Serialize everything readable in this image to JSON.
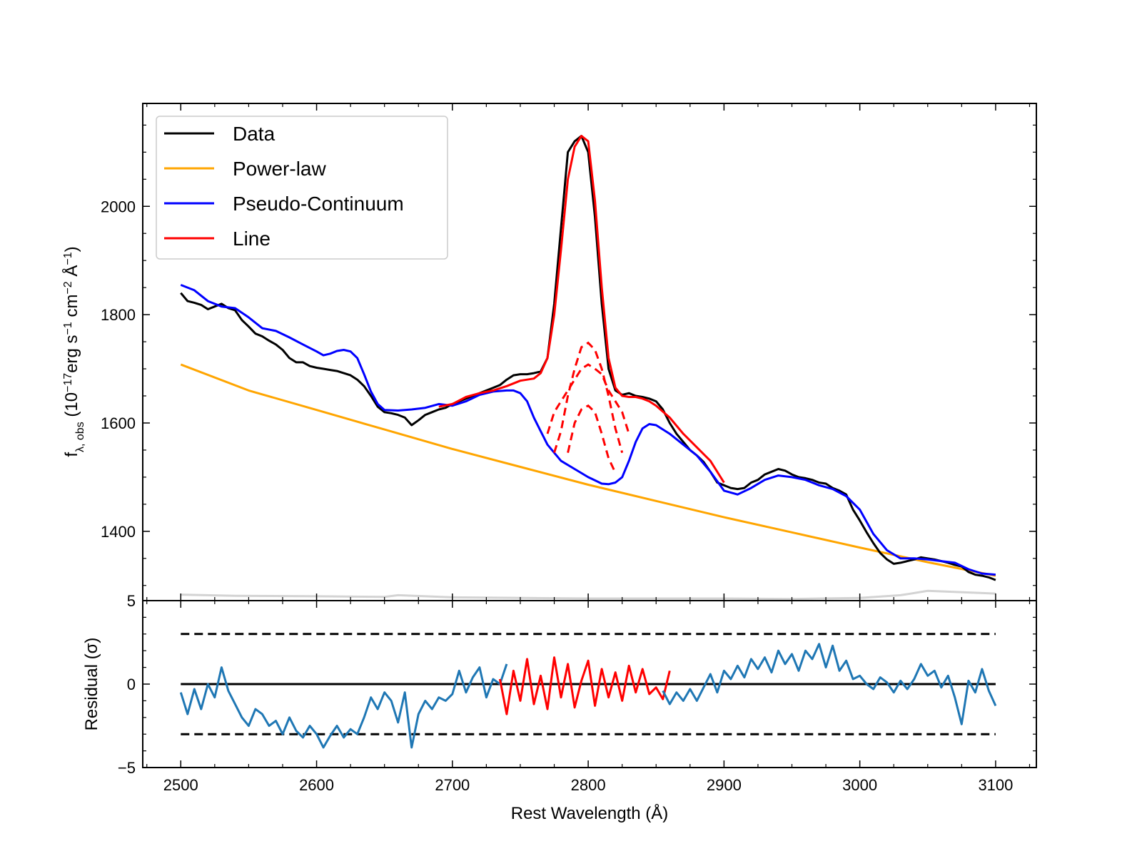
{
  "chart_data": [
    {
      "panel": "top",
      "type": "line",
      "ylabel_parts": {
        "f": "f",
        "sub": "λ, obs",
        "open": " (10",
        "exp1": "−17",
        "erg": "erg s",
        "exp2": "−1",
        "cm": " cm",
        "exp3": "−2",
        "ang": " Å",
        "exp4": "−1",
        "close": ")"
      },
      "xlim": [
        2472,
        3130
      ],
      "ylim": [
        1272,
        2190
      ],
      "yticks": [
        1400,
        1600,
        1800,
        2000
      ],
      "legend_position": "upper-left",
      "series": [
        {
          "name": "Data",
          "color": "#000000",
          "x": [
            2500,
            2505,
            2510,
            2515,
            2520,
            2525,
            2530,
            2535,
            2540,
            2545,
            2550,
            2555,
            2560,
            2565,
            2570,
            2575,
            2580,
            2585,
            2590,
            2595,
            2600,
            2605,
            2610,
            2615,
            2620,
            2625,
            2630,
            2635,
            2640,
            2645,
            2650,
            2655,
            2660,
            2665,
            2670,
            2675,
            2680,
            2685,
            2690,
            2695,
            2700,
            2705,
            2710,
            2715,
            2720,
            2725,
            2730,
            2735,
            2740,
            2745,
            2750,
            2755,
            2760,
            2765,
            2770,
            2775,
            2780,
            2785,
            2790,
            2795,
            2800,
            2805,
            2810,
            2815,
            2820,
            2825,
            2830,
            2835,
            2840,
            2845,
            2850,
            2855,
            2860,
            2865,
            2870,
            2875,
            2880,
            2885,
            2890,
            2895,
            2900,
            2905,
            2910,
            2915,
            2920,
            2925,
            2930,
            2935,
            2940,
            2945,
            2950,
            2955,
            2960,
            2965,
            2970,
            2975,
            2980,
            2985,
            2990,
            2995,
            3000,
            3005,
            3010,
            3015,
            3020,
            3025,
            3030,
            3035,
            3040,
            3045,
            3050,
            3055,
            3060,
            3065,
            3070,
            3075,
            3080,
            3085,
            3090,
            3095,
            3100
          ],
          "y": [
            1840,
            1825,
            1822,
            1818,
            1810,
            1815,
            1820,
            1812,
            1808,
            1790,
            1778,
            1765,
            1760,
            1752,
            1745,
            1735,
            1720,
            1712,
            1712,
            1705,
            1702,
            1700,
            1698,
            1696,
            1692,
            1688,
            1680,
            1668,
            1650,
            1630,
            1620,
            1618,
            1615,
            1610,
            1596,
            1605,
            1615,
            1620,
            1625,
            1628,
            1635,
            1640,
            1645,
            1650,
            1655,
            1660,
            1665,
            1670,
            1680,
            1688,
            1690,
            1690,
            1692,
            1695,
            1720,
            1820,
            1960,
            2100,
            2120,
            2130,
            2100,
            1980,
            1820,
            1700,
            1660,
            1652,
            1655,
            1650,
            1648,
            1645,
            1640,
            1625,
            1600,
            1580,
            1565,
            1550,
            1540,
            1528,
            1510,
            1490,
            1485,
            1480,
            1478,
            1480,
            1490,
            1495,
            1505,
            1510,
            1515,
            1512,
            1505,
            1500,
            1498,
            1495,
            1490,
            1488,
            1480,
            1475,
            1468,
            1440,
            1420,
            1398,
            1378,
            1360,
            1348,
            1340,
            1342,
            1345,
            1348,
            1352,
            1350,
            1348,
            1345,
            1342,
            1338,
            1335,
            1325,
            1320,
            1318,
            1315,
            1310
          ]
        },
        {
          "name": "Power-law",
          "color": "#FFA500",
          "x": [
            2500,
            2550,
            2600,
            2650,
            2700,
            2750,
            2800,
            2850,
            2900,
            2950,
            3000,
            3050,
            3100
          ],
          "y": [
            1708,
            1660,
            1624,
            1588,
            1552,
            1519,
            1486,
            1456,
            1426,
            1398,
            1370,
            1343,
            1318
          ]
        },
        {
          "name": "Pseudo-Continuum",
          "color": "#0000FF",
          "x": [
            2500,
            2510,
            2520,
            2530,
            2540,
            2550,
            2560,
            2570,
            2580,
            2590,
            2600,
            2605,
            2610,
            2615,
            2620,
            2625,
            2630,
            2635,
            2640,
            2645,
            2650,
            2660,
            2670,
            2680,
            2690,
            2700,
            2710,
            2720,
            2730,
            2740,
            2745,
            2750,
            2755,
            2760,
            2765,
            2770,
            2780,
            2790,
            2800,
            2805,
            2810,
            2815,
            2820,
            2825,
            2830,
            2835,
            2840,
            2845,
            2850,
            2860,
            2870,
            2880,
            2890,
            2900,
            2910,
            2920,
            2930,
            2940,
            2950,
            2960,
            2970,
            2980,
            2990,
            3000,
            3010,
            3020,
            3030,
            3040,
            3050,
            3060,
            3070,
            3080,
            3090,
            3100
          ],
          "y": [
            1855,
            1845,
            1825,
            1815,
            1812,
            1795,
            1775,
            1770,
            1758,
            1745,
            1732,
            1725,
            1728,
            1733,
            1735,
            1732,
            1720,
            1690,
            1658,
            1635,
            1624,
            1623,
            1625,
            1628,
            1635,
            1632,
            1640,
            1652,
            1658,
            1660,
            1660,
            1655,
            1640,
            1610,
            1585,
            1560,
            1530,
            1515,
            1500,
            1494,
            1488,
            1487,
            1490,
            1500,
            1530,
            1565,
            1590,
            1598,
            1596,
            1580,
            1560,
            1540,
            1510,
            1475,
            1468,
            1480,
            1495,
            1503,
            1500,
            1495,
            1485,
            1478,
            1465,
            1440,
            1395,
            1365,
            1350,
            1350,
            1348,
            1345,
            1342,
            1330,
            1322,
            1320
          ]
        },
        {
          "name": "Line",
          "color": "#FF0000",
          "x": [
            2690,
            2700,
            2710,
            2720,
            2730,
            2740,
            2750,
            2760,
            2765,
            2770,
            2775,
            2780,
            2785,
            2790,
            2795,
            2800,
            2805,
            2810,
            2815,
            2820,
            2825,
            2830,
            2835,
            2840,
            2845,
            2850,
            2860,
            2870,
            2880,
            2890,
            2900
          ],
          "y": [
            1630,
            1635,
            1648,
            1655,
            1660,
            1668,
            1678,
            1682,
            1692,
            1720,
            1800,
            1920,
            2050,
            2110,
            2130,
            2120,
            2010,
            1850,
            1720,
            1665,
            1650,
            1648,
            1648,
            1645,
            1640,
            1632,
            1610,
            1580,
            1555,
            1530,
            1490
          ]
        }
      ],
      "components": [
        {
          "name": "",
          "color": "#FF0000",
          "style": "dashed",
          "x": [
            2775,
            2780,
            2785,
            2790,
            2795,
            2800,
            2805,
            2810,
            2815,
            2820,
            2825
          ],
          "y": [
            1545,
            1585,
            1650,
            1700,
            1740,
            1748,
            1735,
            1700,
            1650,
            1590,
            1545
          ]
        },
        {
          "name": "",
          "color": "#FF0000",
          "style": "dashed",
          "x": [
            2785,
            2790,
            2795,
            2800,
            2805,
            2810,
            2815,
            2820
          ],
          "y": [
            1545,
            1600,
            1625,
            1632,
            1620,
            1580,
            1535,
            1508
          ]
        },
        {
          "name": "",
          "color": "#FF0000",
          "style": "dashed",
          "x": [
            2770,
            2775,
            2780,
            2790,
            2795,
            2800,
            2805,
            2810,
            2815,
            2820,
            2825,
            2830
          ],
          "y": [
            1580,
            1620,
            1640,
            1680,
            1700,
            1708,
            1700,
            1690,
            1660,
            1640,
            1620,
            1580
          ]
        }
      ],
      "error_trace": {
        "color": "#D3D3D3",
        "x": [
          2500,
          2540,
          2600,
          2650,
          2660,
          2700,
          2800,
          2900,
          2950,
          3000,
          3030,
          3040,
          3050,
          3100
        ],
        "y": [
          1283,
          1281,
          1280,
          1279,
          1282,
          1278,
          1276,
          1276,
          1275,
          1277,
          1282,
          1286,
          1290,
          1285
        ]
      }
    },
    {
      "panel": "bottom",
      "type": "line",
      "xlabel": "Rest Wavelength (Å)",
      "ylabel": "Residual (σ)",
      "xlim": [
        2472,
        3130
      ],
      "ylim": [
        -5,
        5
      ],
      "xticks": [
        2500,
        2600,
        2700,
        2800,
        2900,
        3000,
        3100
      ],
      "yticks": [
        -5,
        0,
        5
      ],
      "reference_lines": [
        {
          "y": 0,
          "color": "#000000",
          "style": "solid"
        },
        {
          "y": 3,
          "color": "#000000",
          "style": "dashed"
        },
        {
          "y": -3,
          "color": "#000000",
          "style": "dashed"
        }
      ],
      "series": [
        {
          "name": "",
          "color": "#1F77B4",
          "x": [
            2500,
            2505,
            2510,
            2515,
            2520,
            2525,
            2530,
            2535,
            2540,
            2545,
            2550,
            2555,
            2560,
            2565,
            2570,
            2575,
            2580,
            2585,
            2590,
            2595,
            2600,
            2605,
            2610,
            2615,
            2620,
            2625,
            2630,
            2635,
            2640,
            2645,
            2650,
            2655,
            2660,
            2665,
            2670,
            2675,
            2680,
            2685,
            2690,
            2695,
            2700,
            2705,
            2710,
            2715,
            2720,
            2725,
            2730,
            2735,
            2740
          ],
          "y": [
            -0.5,
            -1.8,
            -0.3,
            -1.5,
            0.0,
            -0.8,
            1.0,
            -0.4,
            -1.2,
            -2.0,
            -2.5,
            -1.5,
            -1.8,
            -2.5,
            -2.2,
            -3.0,
            -2.0,
            -2.8,
            -3.2,
            -2.5,
            -3.0,
            -3.8,
            -3.1,
            -2.5,
            -3.2,
            -2.7,
            -3.0,
            -2.0,
            -0.8,
            -1.5,
            -0.5,
            -1.0,
            -2.3,
            -0.5,
            -3.8,
            -1.8,
            -1.0,
            -1.5,
            -0.8,
            -1.0,
            -0.6,
            0.8,
            -0.5,
            0.4,
            1.0,
            -0.8,
            0.3,
            0.0,
            1.2
          ]
        },
        {
          "name": "",
          "color": "#FF0000",
          "x": [
            2735,
            2740,
            2745,
            2750,
            2755,
            2760,
            2765,
            2770,
            2775,
            2780,
            2785,
            2790,
            2795,
            2800,
            2805,
            2810,
            2815,
            2820,
            2825,
            2830,
            2835,
            2840,
            2845,
            2850,
            2855,
            2860
          ],
          "y": [
            0.3,
            -1.8,
            0.8,
            -1.0,
            1.5,
            -1.2,
            0.5,
            -1.5,
            1.6,
            -0.8,
            1.2,
            -1.4,
            0.2,
            1.4,
            -1.3,
            0.9,
            -0.8,
            0.7,
            -1.0,
            1.1,
            -0.5,
            0.9,
            -0.6,
            -0.2,
            -0.9,
            0.8
          ]
        },
        {
          "name": "",
          "color": "#1F77B4",
          "x": [
            2855,
            2860,
            2865,
            2870,
            2875,
            2880,
            2885,
            2890,
            2895,
            2900,
            2905,
            2910,
            2915,
            2920,
            2925,
            2930,
            2935,
            2940,
            2945,
            2950,
            2955,
            2960,
            2965,
            2970,
            2975,
            2980,
            2985,
            2990,
            2995,
            3000,
            3005,
            3010,
            3015,
            3020,
            3025,
            3030,
            3035,
            3040,
            3045,
            3050,
            3055,
            3060,
            3065,
            3070,
            3075,
            3080,
            3085,
            3090,
            3095,
            3100
          ],
          "y": [
            -0.4,
            -1.2,
            -0.5,
            -1.0,
            -0.3,
            -1.0,
            -0.2,
            0.6,
            -0.5,
            0.8,
            0.3,
            1.1,
            0.4,
            1.5,
            0.9,
            1.6,
            0.7,
            2.0,
            1.2,
            1.8,
            0.8,
            2.0,
            1.5,
            2.4,
            1.0,
            2.3,
            0.8,
            1.4,
            0.3,
            0.5,
            0.0,
            -0.3,
            0.4,
            0.1,
            -0.5,
            0.2,
            -0.3,
            0.3,
            1.2,
            0.5,
            0.8,
            -0.2,
            0.5,
            -0.8,
            -2.4,
            0.2,
            -0.5,
            0.9,
            -0.4,
            -1.3
          ]
        }
      ]
    }
  ]
}
